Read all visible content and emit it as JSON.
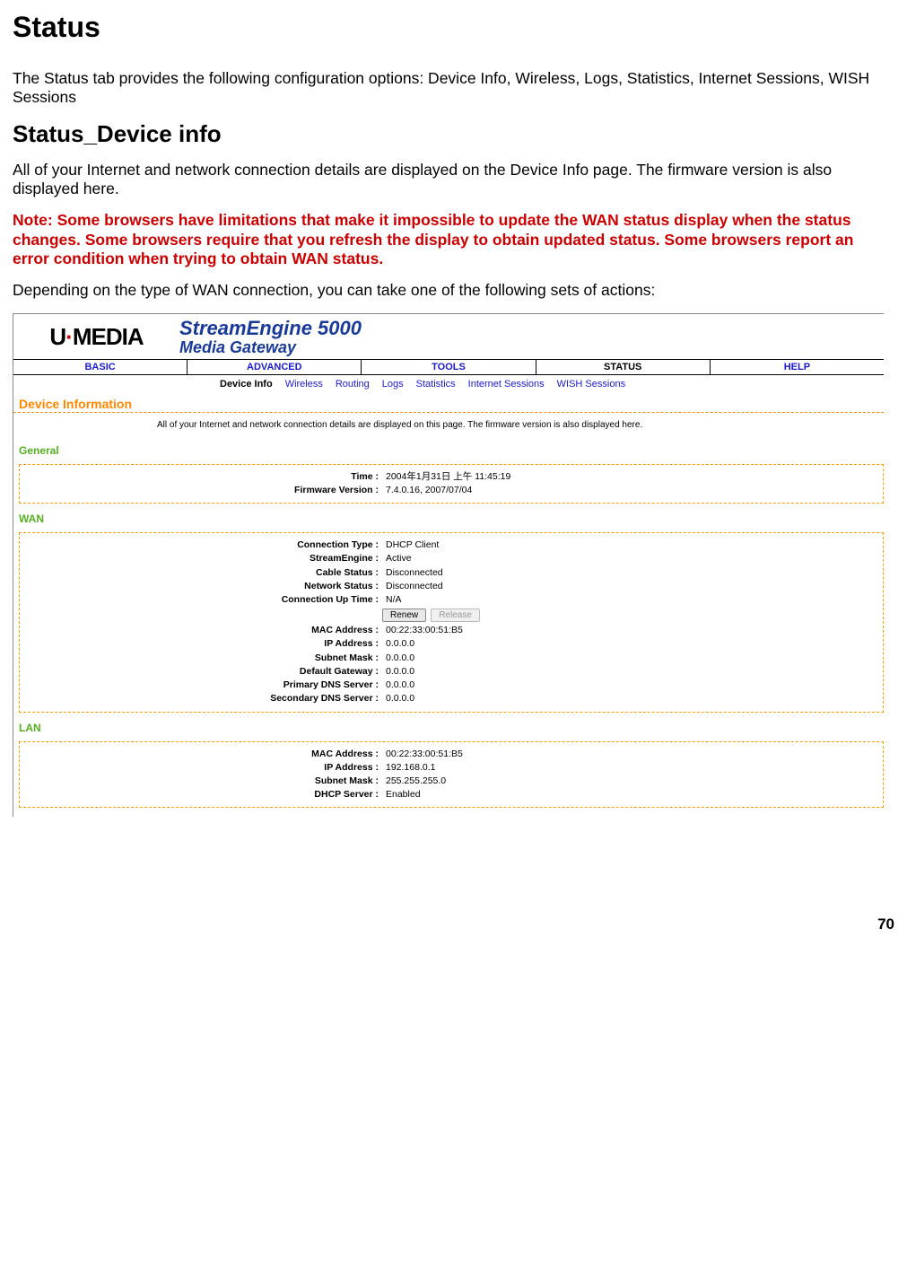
{
  "page": {
    "title": "Status",
    "intro": "The Status tab provides the following configuration options: Device Info, Wireless, Logs, Statistics, Internet Sessions, WISH Sessions",
    "section_title": "Status_Device info",
    "section_desc": "All of your Internet and network connection details are displayed on the Device Info page. The firmware version is also displayed here.",
    "note": "Note: Some browsers have limitations that make it impossible to update the WAN status display when the status changes. Some browsers require that you refresh the display to obtain updated status. Some browsers report an error condition when trying to obtain WAN status.",
    "depending": "Depending on the type of WAN connection, you can take one of the following sets of actions:",
    "page_number": "70"
  },
  "router": {
    "logo": {
      "pre": "U",
      "dot": "·",
      "post": "MEDIA"
    },
    "brand1": "StreamEngine 5000",
    "brand2": "Media Gateway",
    "main_nav": [
      "BASIC",
      "ADVANCED",
      "TOOLS",
      "STATUS",
      "HELP"
    ],
    "main_nav_active": "STATUS",
    "sub_nav": [
      "Device Info",
      "Wireless",
      "Routing",
      "Logs",
      "Statistics",
      "Internet Sessions",
      "WISH Sessions"
    ],
    "sub_nav_active": "Device Info",
    "panel_title": "Device Information",
    "panel_desc": "All of your Internet and network connection details are displayed on this page. The firmware version is also displayed here.",
    "general": {
      "title": "General",
      "time_label": "Time :",
      "time_value": "2004年1月31日 上午 11:45:19",
      "fw_label": "Firmware Version :",
      "fw_value": "7.4.0.16, 2007/07/04"
    },
    "wan": {
      "title": "WAN",
      "rows": [
        {
          "label": "Connection Type :",
          "value": "DHCP Client"
        },
        {
          "label": "StreamEngine :",
          "value": "Active"
        },
        {
          "label": "Cable Status :",
          "value": "Disconnected"
        },
        {
          "label": "Network Status :",
          "value": "Disconnected"
        },
        {
          "label": "Connection Up Time :",
          "value": "N/A"
        }
      ],
      "renew_btn": "Renew",
      "release_btn": "Release",
      "rows2": [
        {
          "label": "MAC Address :",
          "value": "00:22:33:00:51:B5"
        },
        {
          "label": "IP Address :",
          "value": "0.0.0.0"
        },
        {
          "label": "Subnet Mask :",
          "value": "0.0.0.0"
        },
        {
          "label": "Default Gateway :",
          "value": "0.0.0.0"
        },
        {
          "label": "Primary DNS Server :",
          "value": "0.0.0.0"
        },
        {
          "label": "Secondary DNS Server :",
          "value": "0.0.0.0"
        }
      ]
    },
    "lan": {
      "title": "LAN",
      "rows": [
        {
          "label": "MAC Address :",
          "value": "00:22:33:00:51:B5"
        },
        {
          "label": "IP Address :",
          "value": "192.168.0.1"
        },
        {
          "label": "Subnet Mask :",
          "value": "255.255.255.0"
        },
        {
          "label": "DHCP Server :",
          "value": "Enabled"
        }
      ]
    }
  },
  "colors": {
    "note_red": "#cc0000",
    "panel_orange": "#ff8800",
    "sub_green": "#55b020",
    "nav_blue": "#1a1acc",
    "brand_blue": "#1a3a9a"
  }
}
